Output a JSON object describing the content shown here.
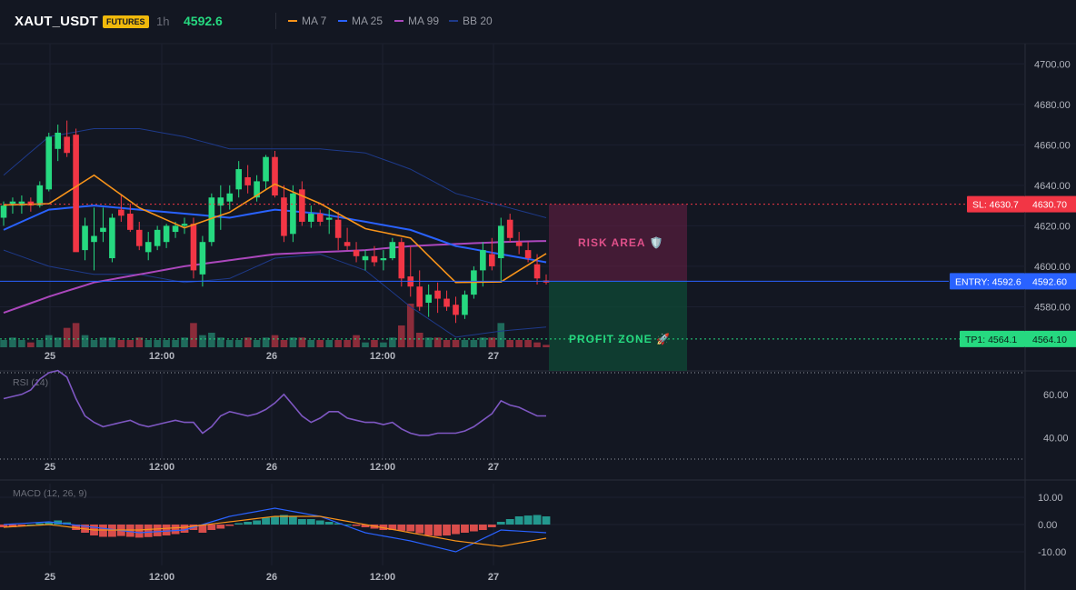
{
  "header": {
    "symbol": "XAUT_USDT",
    "badge": "FUTURES",
    "timeframe": "1h",
    "last_price": "4592.6",
    "legend": [
      {
        "label": "MA 7",
        "color": "#f7931a"
      },
      {
        "label": "MA 25",
        "color": "#2962ff"
      },
      {
        "label": "MA 99",
        "color": "#ab47bc"
      },
      {
        "label": "BB 20",
        "color": "#1e3a8a"
      }
    ]
  },
  "colors": {
    "up": "#26d980",
    "down": "#f23645",
    "up_vol": "#1f6b5c",
    "down_vol": "#8b2c3a"
  },
  "chart_data": [
    {
      "type": "candlestick",
      "title": "XAUT_USDT 1h",
      "ylim": [
        4560,
        4710
      ],
      "y_ticks": [
        4580,
        4600,
        4620,
        4640,
        4660,
        4680,
        4700
      ],
      "x_ticks": [
        "25",
        "12:00",
        "26",
        "12:00",
        "27"
      ],
      "candles": [
        [
          4624,
          4632,
          4620,
          4630
        ],
        [
          4630,
          4634,
          4626,
          4632
        ],
        [
          4630,
          4635,
          4626,
          4632
        ],
        [
          4632,
          4634,
          4627,
          4630
        ],
        [
          4630,
          4642,
          4629,
          4640
        ],
        [
          4638,
          4666,
          4637,
          4664
        ],
        [
          4658,
          4670,
          4652,
          4666
        ],
        [
          4664,
          4672,
          4654,
          4656
        ],
        [
          4665,
          4668,
          4608,
          4607
        ],
        [
          4608,
          4624,
          4603,
          4620
        ],
        [
          4612,
          4629,
          4598,
          4615
        ],
        [
          4617,
          4629,
          4612,
          4619
        ],
        [
          4604,
          4626,
          4602,
          4624
        ],
        [
          4628,
          4635,
          4622,
          4625
        ],
        [
          4626,
          4631,
          4617,
          4618
        ],
        [
          4618,
          4622,
          4608,
          4610
        ],
        [
          4607,
          4617,
          4603,
          4612
        ],
        [
          4610,
          4620,
          4608,
          4618
        ],
        [
          4612,
          4621,
          4609,
          4620
        ],
        [
          4617,
          4622,
          4614,
          4620
        ],
        [
          4620,
          4624,
          4616,
          4621
        ],
        [
          4621,
          4624,
          4594,
          4598
        ],
        [
          4596,
          4615,
          4590,
          4612
        ],
        [
          4612,
          4636,
          4610,
          4634
        ],
        [
          4630,
          4640,
          4618,
          4634
        ],
        [
          4632,
          4640,
          4628,
          4636
        ],
        [
          4638,
          4652,
          4634,
          4648
        ],
        [
          4644,
          4650,
          4636,
          4640
        ],
        [
          4634,
          4645,
          4632,
          4642
        ],
        [
          4642,
          4655,
          4638,
          4654
        ],
        [
          4654,
          4657,
          4634,
          4635
        ],
        [
          4634,
          4640,
          4612,
          4615
        ],
        [
          4616,
          4640,
          4612,
          4636
        ],
        [
          4638,
          4642,
          4620,
          4622
        ],
        [
          4622,
          4630,
          4619,
          4626
        ],
        [
          4626,
          4628,
          4620,
          4622
        ],
        [
          4623,
          4628,
          4616,
          4624
        ],
        [
          4623,
          4627,
          4608,
          4614
        ],
        [
          4612,
          4619,
          4608,
          4610
        ],
        [
          4608,
          4612,
          4602,
          4605
        ],
        [
          4603,
          4608,
          4598,
          4605
        ],
        [
          4605,
          4610,
          4600,
          4602
        ],
        [
          4603,
          4608,
          4598,
          4604
        ],
        [
          4604,
          4614,
          4603,
          4612
        ],
        [
          4612,
          4614,
          4590,
          4594
        ],
        [
          4595,
          4610,
          4585,
          4590
        ],
        [
          4590,
          4598,
          4578,
          4580
        ],
        [
          4582,
          4591,
          4575,
          4586
        ],
        [
          4588,
          4592,
          4577,
          4584
        ],
        [
          4584,
          4588,
          4578,
          4580
        ],
        [
          4581,
          4585,
          4572,
          4576
        ],
        [
          4576,
          4588,
          4574,
          4586
        ],
        [
          4586,
          4600,
          4584,
          4598
        ],
        [
          4598,
          4612,
          4590,
          4608
        ],
        [
          4606,
          4614,
          4598,
          4600
        ],
        [
          4604,
          4624,
          4592,
          4620
        ],
        [
          4623,
          4626,
          4612,
          4614
        ],
        [
          4612,
          4617,
          4606,
          4610
        ],
        [
          4608,
          4612,
          4602,
          4604
        ],
        [
          4601,
          4606,
          4591,
          4594
        ],
        [
          4593,
          4596,
          4591,
          4592
        ]
      ],
      "volume": [
        3,
        4,
        3,
        2,
        3,
        5,
        4,
        8,
        10,
        5,
        3,
        4,
        4,
        3,
        3,
        4,
        3,
        3,
        3,
        3,
        4,
        10,
        5,
        6,
        4,
        3,
        3,
        4,
        3,
        4,
        5,
        3,
        4,
        4,
        3,
        3,
        3,
        3,
        3,
        5,
        2,
        3,
        2,
        4,
        9,
        18,
        6,
        4,
        4,
        3,
        3,
        3,
        3,
        4,
        4,
        10,
        3,
        3,
        3,
        2,
        1
      ],
      "ma7": [
        [
          0,
          4630.3
        ],
        [
          5,
          4630.9
        ],
        [
          10,
          4645.0
        ],
        [
          15,
          4628.9
        ],
        [
          20,
          4619.0
        ],
        [
          25,
          4626.7
        ],
        [
          30,
          4640.6
        ],
        [
          35,
          4631.0
        ],
        [
          40,
          4618.6
        ],
        [
          45,
          4614.0
        ],
        [
          50,
          4592.0
        ],
        [
          55,
          4592.3
        ],
        [
          60,
          4606.3
        ]
      ],
      "ma25": [
        [
          0,
          4618.0
        ],
        [
          5,
          4628.0
        ],
        [
          10,
          4630.0
        ],
        [
          15,
          4628.0
        ],
        [
          20,
          4626.0
        ],
        [
          25,
          4624.0
        ],
        [
          30,
          4628.0
        ],
        [
          35,
          4626.0
        ],
        [
          40,
          4622.0
        ],
        [
          45,
          4618.0
        ],
        [
          50,
          4610.0
        ],
        [
          55,
          4606.0
        ],
        [
          60,
          4602.0
        ]
      ],
      "ma99": [
        [
          0,
          4577.0
        ],
        [
          5,
          4585.0
        ],
        [
          10,
          4592.0
        ],
        [
          15,
          4596.0
        ],
        [
          20,
          4600.0
        ],
        [
          25,
          4603.0
        ],
        [
          30,
          4606.0
        ],
        [
          35,
          4607.0
        ],
        [
          40,
          4608.0
        ],
        [
          45,
          4610.0
        ],
        [
          50,
          4611.0
        ],
        [
          55,
          4612.0
        ],
        [
          60,
          4612.5
        ]
      ],
      "bb_upper": [
        [
          0,
          4645
        ],
        [
          5,
          4664
        ],
        [
          10,
          4668
        ],
        [
          15,
          4668
        ],
        [
          20,
          4664
        ],
        [
          25,
          4658
        ],
        [
          30,
          4658
        ],
        [
          35,
          4658
        ],
        [
          40,
          4656
        ],
        [
          45,
          4648
        ],
        [
          50,
          4636
        ],
        [
          55,
          4630
        ],
        [
          60,
          4624
        ]
      ],
      "bb_lower": [
        [
          0,
          4608
        ],
        [
          5,
          4600
        ],
        [
          10,
          4596
        ],
        [
          15,
          4596
        ],
        [
          20,
          4592
        ],
        [
          25,
          4594
        ],
        [
          30,
          4604
        ],
        [
          35,
          4606
        ],
        [
          40,
          4598
        ],
        [
          45,
          4580
        ],
        [
          50,
          4565
        ],
        [
          55,
          4568
        ],
        [
          60,
          4570
        ]
      ],
      "levels": {
        "sl": {
          "value": 4630.7,
          "label": "SL: 4630.7",
          "axis": "4630.70"
        },
        "entry": {
          "value": 4592.6,
          "label": "ENTRY: 4592.6",
          "axis": "4592.60"
        },
        "tp1": {
          "value": 4564.1,
          "label": "TP1: 4564.1",
          "axis": "4564.10"
        }
      },
      "zones": {
        "risk": {
          "label": "RISK AREA 🛡️",
          "from": 4592.6,
          "to": 4630.7
        },
        "profit": {
          "label": "PROFIT ZONE 🚀",
          "from": 4592.6,
          "to": 4564.1
        }
      }
    },
    {
      "type": "line",
      "title": "RSI (14)",
      "ylim": [
        30,
        70
      ],
      "y_ticks": [
        40.0,
        60.0
      ],
      "y_tick_labels": [
        "40.00",
        "60.00"
      ],
      "x_ticks": [
        "25",
        "12:00",
        "26",
        "12:00",
        "27"
      ],
      "values": [
        58,
        59,
        60,
        62,
        67,
        70,
        71,
        68,
        58,
        50,
        47,
        45,
        46,
        47,
        48,
        46,
        45,
        46,
        47,
        48,
        47,
        47,
        42,
        45,
        50,
        52,
        51,
        50,
        51,
        53,
        56,
        60,
        55,
        50,
        47,
        49,
        52,
        52,
        49,
        48,
        47,
        47,
        46,
        47,
        44,
        42,
        41,
        41,
        42,
        42,
        42,
        43,
        45,
        48,
        51,
        57,
        55,
        54,
        52,
        50,
        50
      ],
      "overbought": 70,
      "oversold": 30
    },
    {
      "type": "bar",
      "title": "MACD (12, 26, 9)",
      "ylim": [
        -15,
        15
      ],
      "y_ticks": [
        10,
        0,
        -10
      ],
      "y_tick_labels": [
        "10.00",
        "0.00",
        "-10.00"
      ],
      "x_ticks": [
        "25",
        "12:00",
        "26",
        "12:00",
        "27"
      ],
      "histogram": [
        -1,
        -1,
        -0.5,
        0,
        0.5,
        1,
        1.5,
        0.8,
        -2,
        -3,
        -4,
        -4.5,
        -4.5,
        -4.2,
        -4.5,
        -4.8,
        -4.6,
        -4.3,
        -4,
        -3.5,
        -3,
        -2,
        -3,
        -2,
        -1.5,
        -0.5,
        0.5,
        1,
        1.5,
        2.5,
        3,
        3.5,
        3,
        2,
        2,
        1.5,
        1,
        0.5,
        0,
        -0.5,
        -1,
        -1.5,
        -2,
        -2,
        -2.3,
        -2.5,
        -3.2,
        -4,
        -4.2,
        -4,
        -3.5,
        -3,
        -2.5,
        -2,
        -1,
        1,
        2,
        3,
        3.3,
        3.5,
        3
      ],
      "macd_line": [
        [
          0,
          0
        ],
        [
          5,
          1
        ],
        [
          10,
          -1
        ],
        [
          15,
          -3
        ],
        [
          20,
          -2
        ],
        [
          25,
          3
        ],
        [
          30,
          6
        ],
        [
          35,
          3
        ],
        [
          40,
          -3
        ],
        [
          45,
          -6
        ],
        [
          50,
          -10
        ],
        [
          55,
          -2
        ],
        [
          60,
          -3
        ]
      ],
      "signal_line": [
        [
          0,
          -1
        ],
        [
          5,
          0
        ],
        [
          10,
          -2
        ],
        [
          15,
          -2
        ],
        [
          20,
          -1
        ],
        [
          25,
          1
        ],
        [
          30,
          3
        ],
        [
          35,
          3
        ],
        [
          40,
          0
        ],
        [
          45,
          -3
        ],
        [
          50,
          -6
        ],
        [
          55,
          -8
        ],
        [
          60,
          -5
        ]
      ]
    }
  ]
}
